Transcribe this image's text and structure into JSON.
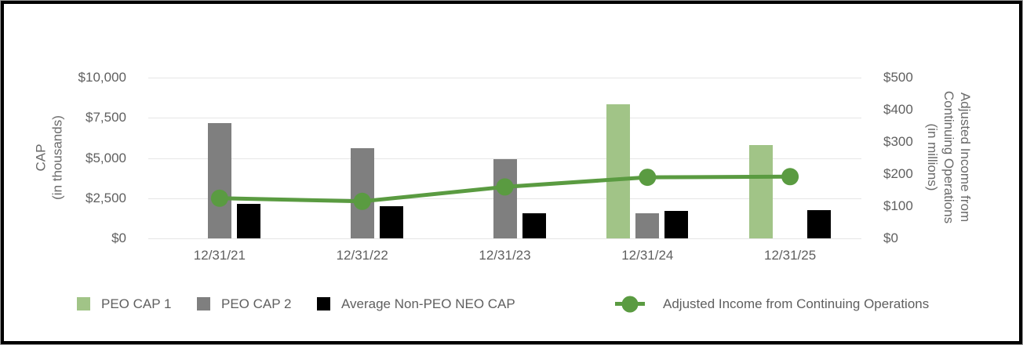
{
  "chart_data": {
    "type": "bar+line combo (dual axis)",
    "title": "",
    "categories": [
      "12/31/21",
      "12/31/22",
      "12/31/23",
      "12/31/24",
      "12/31/25"
    ],
    "bar_series": [
      {
        "name": "PEO CAP 1",
        "color": "#a1c487",
        "axis": "left",
        "values": [
          null,
          null,
          null,
          8350,
          5800
        ]
      },
      {
        "name": "PEO CAP 2",
        "color": "#7f7f7f",
        "axis": "left",
        "values": [
          7150,
          5600,
          4950,
          1550,
          null
        ]
      },
      {
        "name": "Average Non-PEO NEO CAP",
        "color": "#000000",
        "axis": "left",
        "values": [
          2150,
          2000,
          1550,
          1725,
          1750
        ]
      }
    ],
    "line_series": [
      {
        "name": "Adjusted Income from Continuing Operations",
        "color": "#5a9b41",
        "axis": "right",
        "values": [
          125,
          115,
          160,
          190,
          192
        ]
      }
    ],
    "left_axis": {
      "title_lines": [
        "CAP",
        "(in thousands)"
      ],
      "tick_labels": [
        "$10,000",
        "$7,500",
        "$5,000",
        "$2,500",
        "$0"
      ],
      "tick_values": [
        10000,
        7500,
        5000,
        2500,
        0
      ],
      "min": 0,
      "max": 10000
    },
    "right_axis": {
      "title_lines": [
        "Adjusted Income from",
        "Continuing Operations",
        "(in millions)"
      ],
      "tick_labels": [
        "$500",
        "$400",
        "$300",
        "$200",
        "$100",
        "$0"
      ],
      "tick_values": [
        500,
        400,
        300,
        200,
        100,
        0
      ],
      "min": 0,
      "max": 500
    },
    "grid": true,
    "legend_position": "bottom"
  },
  "colors": {
    "peo_cap_1": "#a1c487",
    "peo_cap_2": "#7f7f7f",
    "non_peo_neo": "#000000",
    "income_line": "#5a9b41",
    "gridline": "#e6e6e6",
    "text": "#5f5f5f"
  }
}
